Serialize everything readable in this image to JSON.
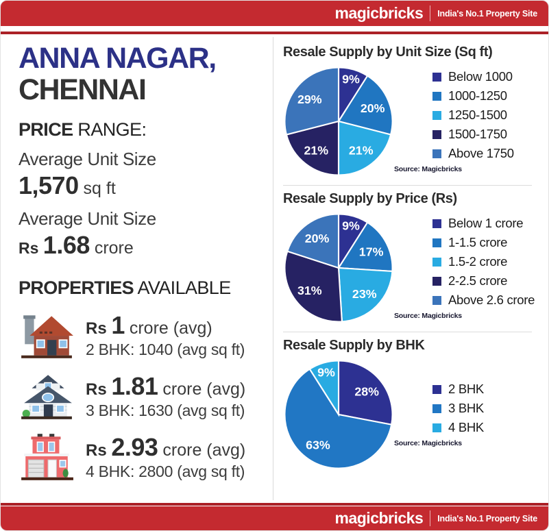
{
  "header": {
    "logo": "magicbricks",
    "tagline": "India's No.1 Property Site"
  },
  "footer": {
    "logo": "magicbricks",
    "tagline": "India's No.1 Property Site"
  },
  "palette": {
    "brand_red": "#c42a30",
    "rule_red": "#ab2127",
    "title_navy": "#2c3187",
    "text_dark": "#323232",
    "divider_gray": "#d9d9d9",
    "slice_label_color": "#ffffff"
  },
  "location": {
    "line1": "ANNA NAGAR,",
    "line2": "CHENNAI"
  },
  "price_range": {
    "heading_bold": "PRICE",
    "heading_rest": " RANGE:",
    "stats": [
      {
        "label": "Average Unit Size",
        "prefix": "",
        "value": "1,570",
        "suffix": " sq ft"
      },
      {
        "label": "Average Unit Size",
        "prefix": "Rs ",
        "value": "1.68",
        "suffix": " crore"
      }
    ]
  },
  "properties": {
    "heading_bold": "PROPERTIES",
    "heading_rest": " AVAILABLE",
    "items": [
      {
        "icon": "red-house-icon",
        "currency": "Rs ",
        "value": "1",
        "suffix": " crore (avg)",
        "detail": "2 BHK: 1040 (avg sq ft)"
      },
      {
        "icon": "gray-house-icon",
        "currency": "Rs ",
        "value": "1.81",
        "suffix": " crore (avg)",
        "detail": "3 BHK: 1630 (avg sq ft)"
      },
      {
        "icon": "pink-building-icon",
        "currency": "Rs ",
        "value": "2.93",
        "suffix": " crore (avg)",
        "detail": "4 BHK: 2800 (avg sq ft)"
      }
    ]
  },
  "chart_data": [
    {
      "type": "pie",
      "title": "Resale Supply by Unit Size (Sq ft)",
      "labels": [
        "Below 1000",
        "1000-1250",
        "1250-1500",
        "1500-1750",
        "Above 1750"
      ],
      "values": [
        9,
        20,
        21,
        21,
        29
      ],
      "colors": [
        "#2d3192",
        "#2076c1",
        "#29abe2",
        "#262263",
        "#3b74ba"
      ],
      "value_suffix": "%",
      "start_angle": "top",
      "direction": "clockwise",
      "legend_position": "right",
      "source": "Source: Magicbricks"
    },
    {
      "type": "pie",
      "title": "Resale Supply by Price (Rs)",
      "labels": [
        "Below 1 crore",
        "1-1.5 crore",
        "1.5-2 crore",
        "2-2.5 crore",
        "Above 2.6 crore"
      ],
      "values": [
        9,
        17,
        23,
        31,
        20
      ],
      "colors": [
        "#2d3192",
        "#2076c1",
        "#29abe2",
        "#262263",
        "#3b74ba"
      ],
      "value_suffix": "%",
      "start_angle": "top",
      "direction": "clockwise",
      "legend_position": "right",
      "source": "Source: Magicbricks"
    },
    {
      "type": "pie",
      "title": "Resale Supply by BHK",
      "labels": [
        "2 BHK",
        "3 BHK",
        "4 BHK"
      ],
      "values": [
        28,
        63,
        9
      ],
      "colors": [
        "#2d3192",
        "#2177c4",
        "#29abe2"
      ],
      "value_suffix": "%",
      "start_angle": "top",
      "direction": "clockwise",
      "legend_position": "right",
      "source": "Source: Magicbricks"
    }
  ]
}
